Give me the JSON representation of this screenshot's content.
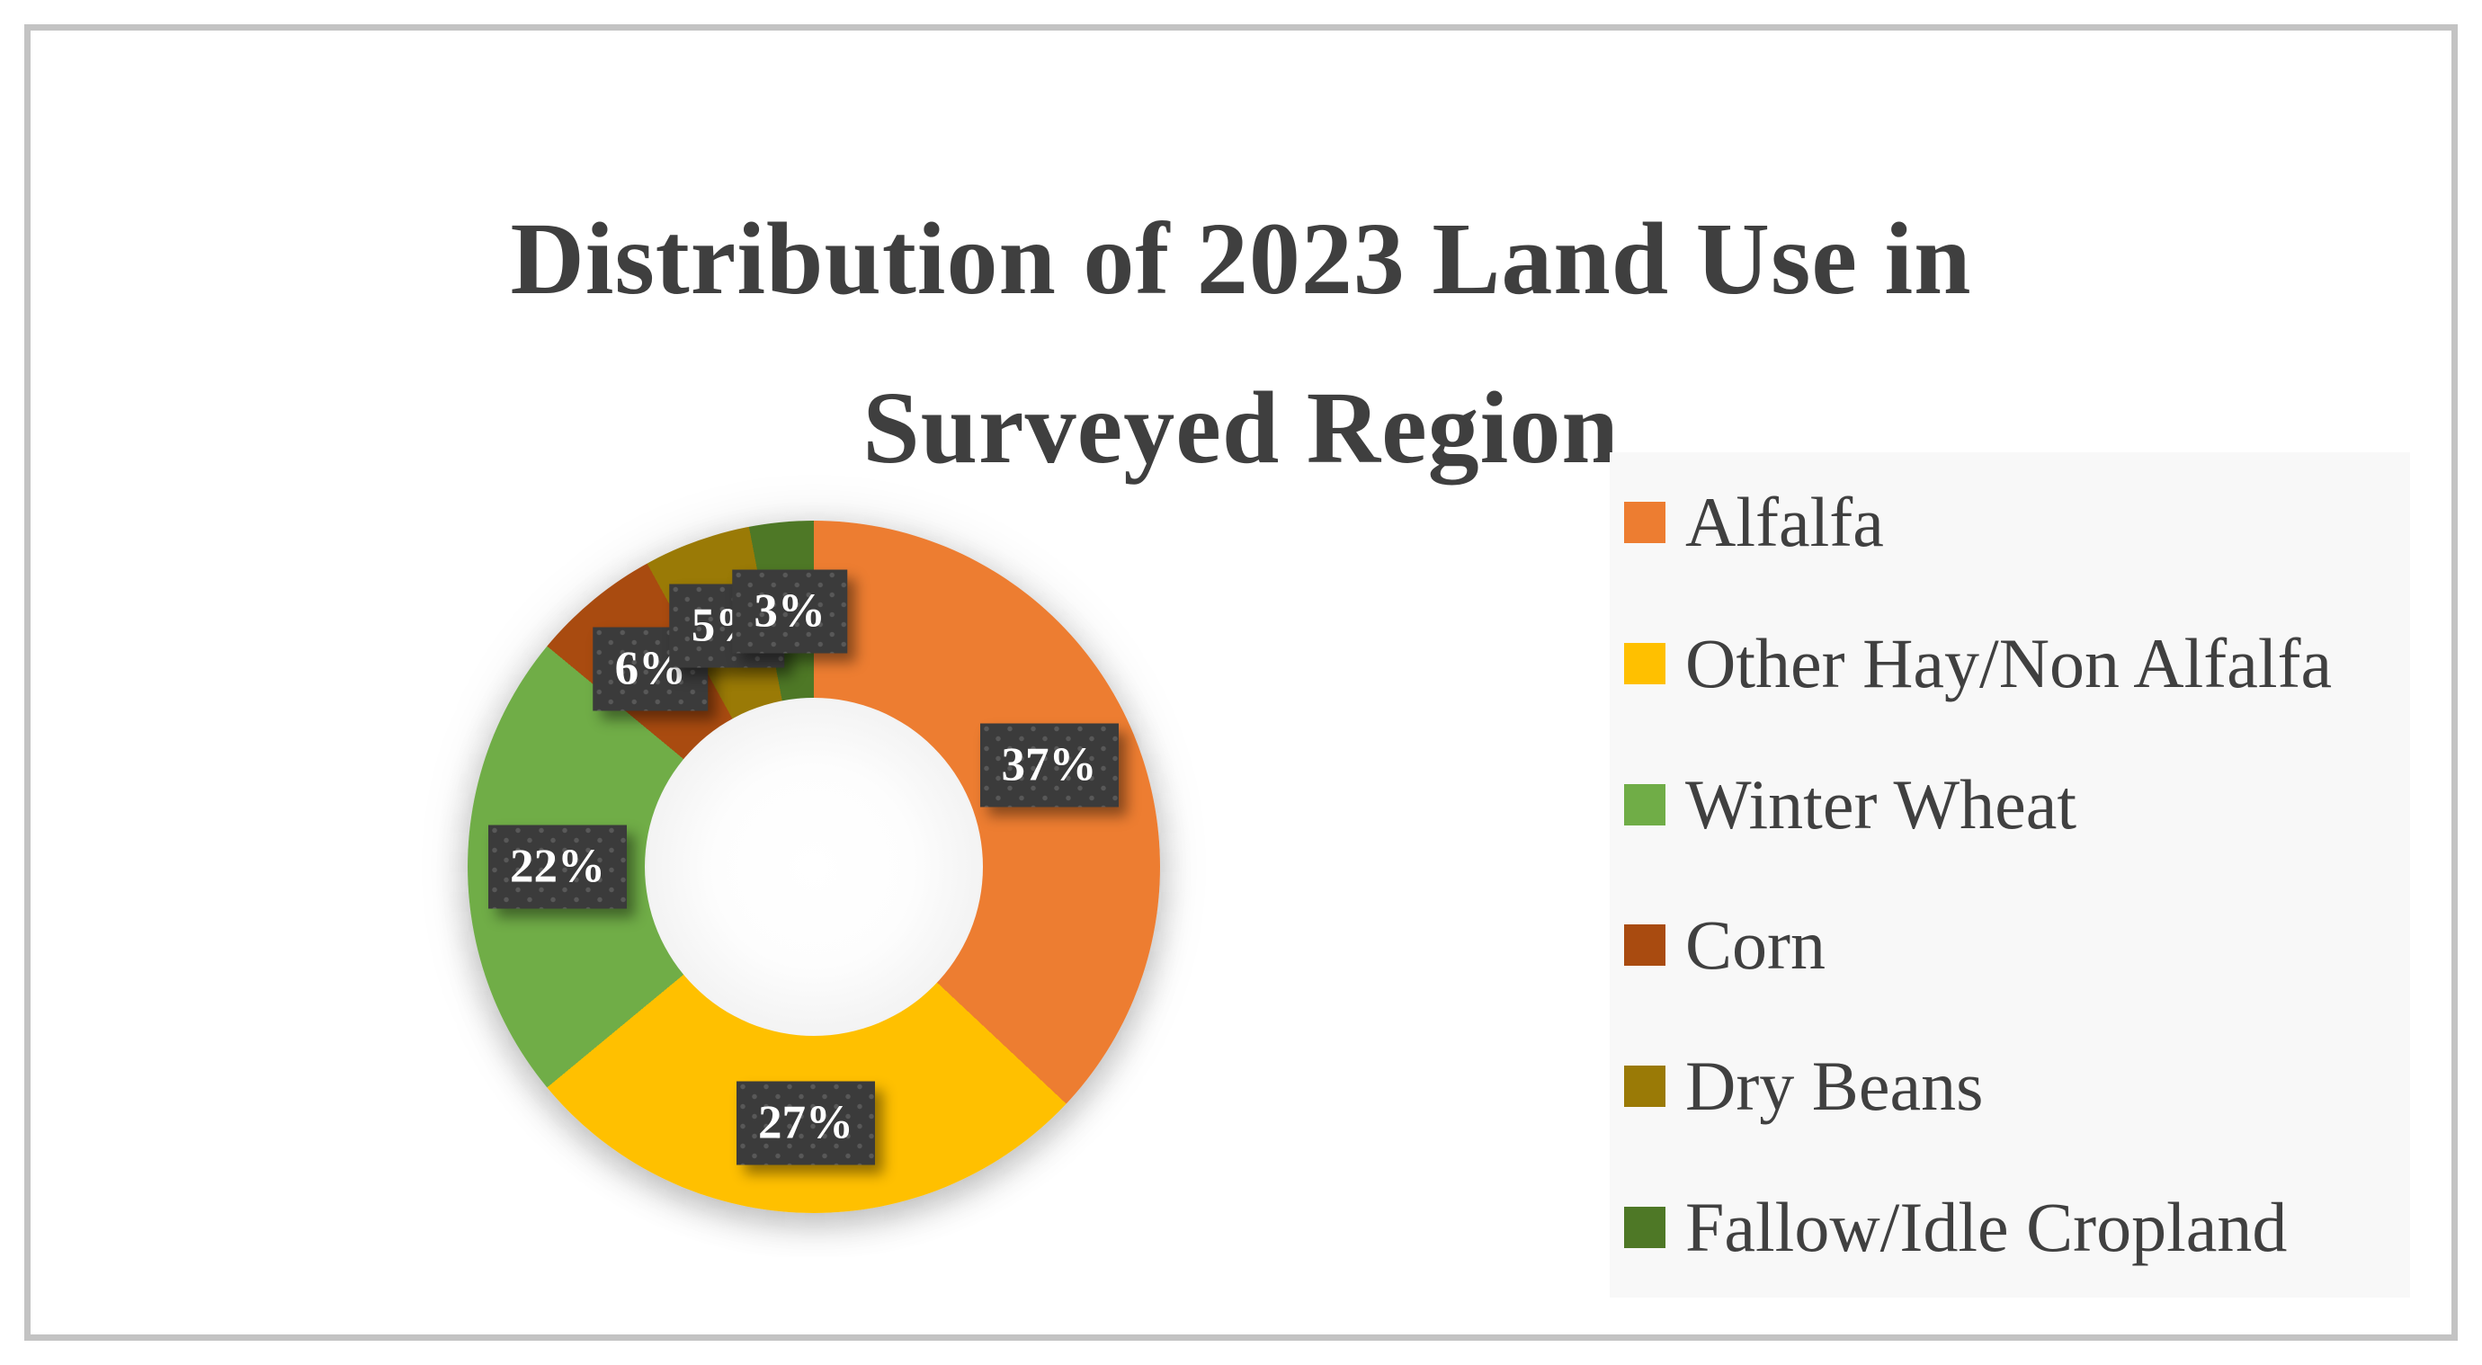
{
  "page": {
    "background": "#ffffff",
    "frame_color": "#c3c3c3",
    "legend_background": "#f8f8f8",
    "title_color": "#3f3f3f"
  },
  "title": {
    "line1": "Distribution of 2023 Land Use in",
    "line2": "Surveyed Region"
  },
  "chart_data": {
    "type": "pie",
    "subtype": "donut",
    "donut_hole_ratio": 0.49,
    "title": "Distribution of 2023 Land Use in Surveyed Region",
    "categories": [
      "Alfalfa",
      "Other Hay/Non Alfalfa",
      "Winter Wheat",
      "Corn",
      "Dry Beans",
      "Fallow/Idle Cropland"
    ],
    "values": [
      37,
      27,
      22,
      6,
      5,
      3
    ],
    "unit": "%",
    "data_labels": [
      "37%",
      "27%",
      "22%",
      "6%",
      "5%",
      "3%"
    ],
    "colors": [
      "#ED7D31",
      "#FFC000",
      "#70AD47",
      "#A94B10",
      "#9A7A06",
      "#4E7826"
    ],
    "start_angle_deg": 0,
    "direction": "clockwise",
    "legend_position": "right",
    "label_box": {
      "background": "#3B3B3B",
      "text_color": "#FFFFFF",
      "pattern": "dotted"
    }
  }
}
